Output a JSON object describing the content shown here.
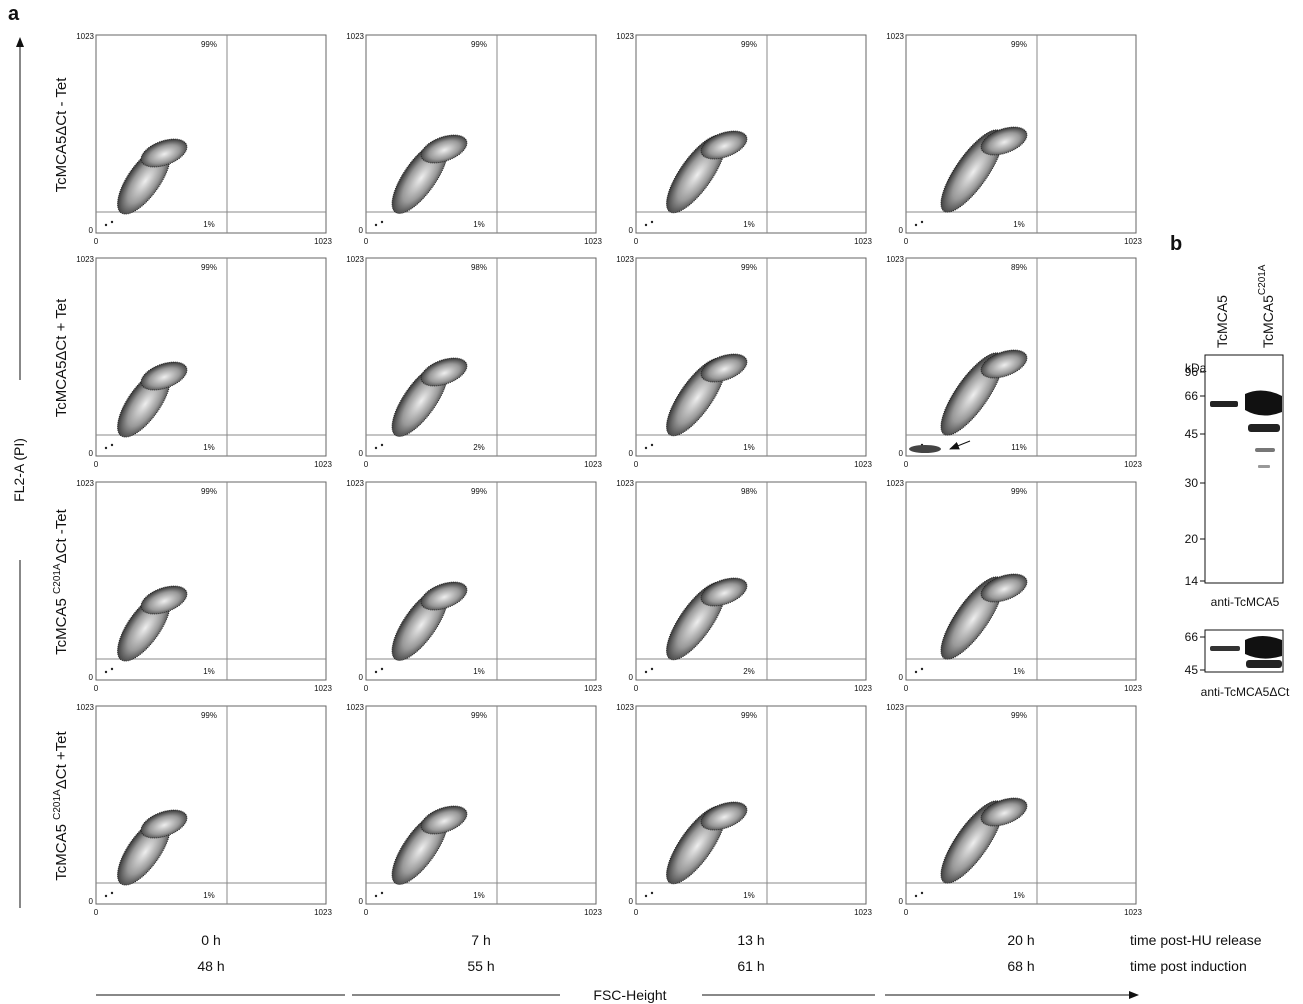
{
  "panel_a": "a",
  "panel_b": "b",
  "y_axis_label": "FL2-A (PI)",
  "x_axis_label": "FSC-Height",
  "axis_min": "0",
  "axis_max": "1023",
  "rows": [
    {
      "pre": "TcMCA5ΔCt - Tet"
    },
    {
      "pre": "TcMCA5ΔCt + Tet"
    },
    {
      "pre": "TcMCA5 ",
      "sup": "C201A",
      "post": "ΔCt  -Tet"
    },
    {
      "pre": "TcMCA5 ",
      "sup": "C201A",
      "post": "ΔCt  +Tet"
    }
  ],
  "plots": [
    [
      {
        "upper": "99%",
        "lower": "1%"
      },
      {
        "upper": "99%",
        "lower": "1%"
      },
      {
        "upper": "99%",
        "lower": "1%"
      },
      {
        "upper": "99%",
        "lower": "1%"
      }
    ],
    [
      {
        "upper": "99%",
        "lower": "1%"
      },
      {
        "upper": "98%",
        "lower": "2%"
      },
      {
        "upper": "99%",
        "lower": "1%"
      },
      {
        "upper": "89%",
        "lower": "11%"
      }
    ],
    [
      {
        "upper": "99%",
        "lower": "1%"
      },
      {
        "upper": "99%",
        "lower": "1%"
      },
      {
        "upper": "98%",
        "lower": "2%"
      },
      {
        "upper": "99%",
        "lower": "1%"
      }
    ],
    [
      {
        "upper": "99%",
        "lower": "1%"
      },
      {
        "upper": "99%",
        "lower": "1%"
      },
      {
        "upper": "99%",
        "lower": "1%"
      },
      {
        "upper": "99%",
        "lower": "1%"
      }
    ]
  ],
  "columns": [
    {
      "hu": "0 h",
      "induction": "48 h"
    },
    {
      "hu": "7 h",
      "induction": "55 h"
    },
    {
      "hu": "13 h",
      "induction": "61 h"
    },
    {
      "hu": "20 h",
      "induction": "68 h"
    }
  ],
  "column_captions": {
    "hu": "time post-HU release",
    "induction": "time post induction"
  },
  "blot": {
    "lanes": [
      {
        "name": "TcMCA5"
      },
      {
        "name": "TcMCA5",
        "sup": "C201A"
      }
    ],
    "kda": "kDa",
    "markers": [
      "96",
      "66",
      "45",
      "30",
      "20",
      "14"
    ],
    "caption": "anti-TcMCA5",
    "markers2": [
      "66",
      "45"
    ],
    "caption2": "anti-TcMCA5ΔCt"
  }
}
